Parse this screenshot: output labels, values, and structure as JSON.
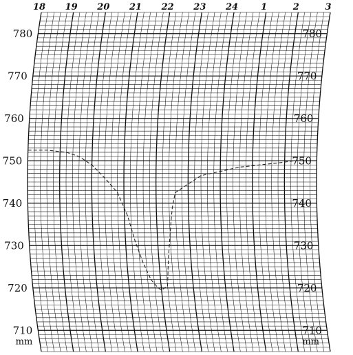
{
  "chart_data": {
    "type": "line",
    "title": "",
    "xlabel": "",
    "ylabel": "mm",
    "x_tick_labels": [
      "18",
      "19",
      "20",
      "21",
      "22",
      "23",
      "24",
      "1",
      "2",
      "3"
    ],
    "y_ticks": [
      780,
      770,
      760,
      750,
      740,
      730,
      720,
      710
    ],
    "y_tick_labels": [
      "780",
      "770",
      "760",
      "750",
      "740",
      "730",
      "720",
      "710"
    ],
    "right_y_tick_labels": [
      "780",
      "770",
      "760",
      "750",
      "740",
      "730",
      "720",
      "710"
    ],
    "left_unit": "mm",
    "right_unit": "mm",
    "ylim": [
      705,
      785
    ],
    "xlim": [
      18,
      27
    ],
    "grid": true,
    "line_style": "dashed",
    "series": [
      {
        "x": [
          18.0,
          18.6,
          19.2,
          19.6,
          20.0,
          20.4,
          20.8,
          21.1,
          21.3,
          21.5,
          21.7,
          21.9,
          22.0,
          22.2,
          22.3,
          22.45,
          22.5,
          22.6,
          22.8,
          23.0,
          23.4,
          24.0,
          24.6,
          25.2,
          25.8,
          26.3,
          27.0
        ],
        "y": [
          752.5,
          752.5,
          752.0,
          751.0,
          749.0,
          746.0,
          742.5,
          737.0,
          731.0,
          726.0,
          722.0,
          720.0,
          719.5,
          720.5,
          727.0,
          736.0,
          739.0,
          742.5,
          743.5,
          744.5,
          746.5,
          747.5,
          748.5,
          749.0,
          749.5,
          750.0,
          750.0
        ]
      }
    ]
  }
}
